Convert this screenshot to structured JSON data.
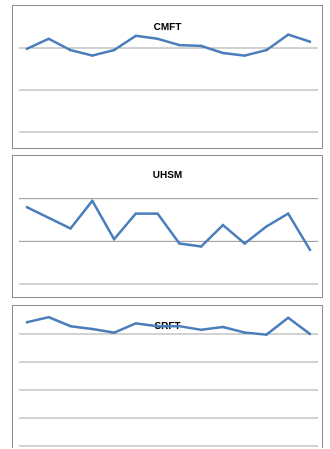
{
  "chart_data": [
    {
      "type": "line",
      "title": "CMFT",
      "xlabel": "",
      "ylabel": "",
      "grid": true,
      "ylim": [
        0,
        3
      ],
      "x": [
        1,
        2,
        3,
        4,
        5,
        6,
        7,
        8,
        9,
        10,
        11,
        12,
        13,
        14
      ],
      "series": [
        {
          "values": [
            1.98,
            2.22,
            1.95,
            1.82,
            1.95,
            2.29,
            2.22,
            2.07,
            2.05,
            1.88,
            1.82,
            1.95,
            2.32,
            2.15
          ]
        }
      ],
      "color": "#4a7ebb"
    },
    {
      "type": "line",
      "title": "UHSM",
      "xlabel": "",
      "ylabel": "",
      "grid": true,
      "ylim": [
        0,
        3
      ],
      "x": [
        1,
        2,
        3,
        4,
        5,
        6,
        7,
        8,
        9,
        10,
        11,
        12,
        13,
        14
      ],
      "series": [
        {
          "values": [
            1.8,
            1.55,
            1.3,
            1.95,
            1.05,
            1.65,
            1.65,
            0.95,
            0.88,
            1.38,
            0.95,
            1.35,
            1.65,
            0.8
          ]
        }
      ],
      "color": "#4a7ebb"
    },
    {
      "type": "line",
      "title": "SRFT",
      "xlabel": "",
      "ylabel": "",
      "grid": true,
      "ylim": [
        0,
        5
      ],
      "x": [
        1,
        2,
        3,
        4,
        5,
        6,
        7,
        8,
        9,
        10,
        11,
        12,
        13,
        14
      ],
      "series": [
        {
          "values": [
            4.42,
            4.6,
            4.28,
            4.18,
            4.05,
            4.38,
            4.28,
            4.28,
            4.15,
            4.25,
            4.05,
            3.98,
            4.58,
            4.0
          ]
        }
      ],
      "color": "#4a7ebb"
    }
  ]
}
